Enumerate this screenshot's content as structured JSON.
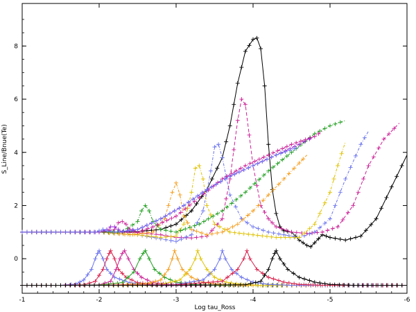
{
  "chart_data": {
    "type": "line",
    "title": "",
    "xlabel": "Log tau_Ross",
    "ylabel": "S_Line/Bnue(Te)",
    "xlim": [
      -1,
      -6
    ],
    "ylim": [
      -1.3,
      9.6
    ],
    "xticks": [
      -1,
      -2,
      -3,
      -4,
      -5,
      -6
    ],
    "xtick_labels": [
      "-1",
      "-2",
      "-3",
      "-4",
      "-5",
      "-6"
    ],
    "yticks": [
      0,
      2,
      4,
      6,
      8
    ],
    "ytick_labels": [
      "0",
      "2",
      "4",
      "6",
      "8"
    ],
    "grid": false,
    "legend": "none",
    "colors": {
      "black": "#000000",
      "magenta": "#cc1f96",
      "red": "#d81e4a",
      "blue": "#6a73ee",
      "yellow": "#e0c200",
      "orange": "#f59c1a",
      "green": "#1e9e1e",
      "purple": "#9b2ad8"
    },
    "series": [
      {
        "group": "upper",
        "color": "black",
        "dash": "solid",
        "x": [
          -1,
          -1.5,
          -2,
          -2.5,
          -2.8,
          -3,
          -3.2,
          -3.4,
          -3.6,
          -3.7,
          -3.8,
          -3.9,
          -4.0,
          -4.05,
          -4.1,
          -4.15,
          -4.2,
          -4.25,
          -4.3,
          -4.35,
          -4.4,
          -4.5,
          -4.6,
          -4.7,
          -4.75,
          -4.8,
          -4.9,
          -5.0,
          -5.2,
          -5.4,
          -5.6,
          -5.8,
          -6.0
        ],
        "y": [
          1.0,
          1.0,
          1.0,
          1.02,
          1.1,
          1.3,
          1.8,
          2.6,
          3.8,
          5.0,
          6.6,
          7.8,
          8.25,
          8.3,
          7.9,
          6.5,
          4.3,
          2.6,
          1.7,
          1.2,
          1.05,
          1.0,
          0.7,
          0.5,
          0.45,
          0.6,
          0.9,
          0.8,
          0.7,
          0.85,
          1.5,
          2.7,
          3.9
        ]
      },
      {
        "group": "upper",
        "color": "magenta",
        "dash": "dash",
        "x": [
          -1,
          -1.5,
          -2,
          -2.5,
          -2.8,
          -3,
          -3.2,
          -3.4,
          -3.6,
          -3.7,
          -3.8,
          -3.85,
          -3.9,
          -4.0,
          -4.1,
          -4.2,
          -4.3,
          -4.5,
          -4.7,
          -4.9,
          -5.1,
          -5.3,
          -5.5,
          -5.7,
          -5.9
        ],
        "y": [
          1.0,
          1.0,
          1.0,
          0.98,
          0.9,
          0.8,
          0.78,
          0.85,
          1.5,
          3.0,
          5.2,
          6.0,
          5.8,
          3.5,
          2.0,
          1.5,
          1.2,
          1.0,
          0.95,
          1.0,
          1.2,
          2.0,
          3.5,
          4.5,
          5.1
        ]
      },
      {
        "group": "upper",
        "color": "blue",
        "dash": "dashdot",
        "x": [
          -1,
          -1.5,
          -2,
          -2.5,
          -2.8,
          -3,
          -3.2,
          -3.35,
          -3.45,
          -3.5,
          -3.55,
          -3.6,
          -3.7,
          -3.85,
          -4.0,
          -4.2,
          -4.4,
          -4.6,
          -4.8,
          -5.0,
          -5.2,
          -5.4,
          -5.5
        ],
        "y": [
          1.0,
          1.0,
          1.0,
          0.9,
          0.75,
          0.65,
          0.9,
          1.8,
          3.3,
          4.2,
          4.3,
          3.8,
          2.4,
          1.5,
          1.2,
          1.0,
          0.9,
          0.8,
          1.0,
          1.5,
          3.0,
          4.3,
          4.8
        ]
      },
      {
        "group": "upper",
        "color": "yellow",
        "dash": "dashdot",
        "x": [
          -1,
          -1.5,
          -2,
          -2.5,
          -2.8,
          -3,
          -3.1,
          -3.2,
          -3.25,
          -3.3,
          -3.35,
          -3.4,
          -3.5,
          -3.7,
          -4.0,
          -4.3,
          -4.6,
          -4.8,
          -5.0,
          -5.1,
          -5.2
        ],
        "y": [
          1.0,
          1.0,
          1.0,
          0.9,
          0.8,
          0.85,
          1.3,
          2.5,
          3.4,
          3.5,
          3.0,
          2.0,
          1.3,
          1.0,
          0.9,
          0.8,
          0.8,
          1.3,
          2.5,
          3.5,
          4.4
        ]
      },
      {
        "group": "upper",
        "color": "orange",
        "dash": "dashdot",
        "x": [
          -1,
          -1.5,
          -2,
          -2.4,
          -2.7,
          -2.85,
          -2.95,
          -3.0,
          -3.05,
          -3.1,
          -3.2,
          -3.4,
          -3.6,
          -3.8,
          -4.0,
          -4.2,
          -4.4,
          -4.6,
          -4.7
        ],
        "y": [
          1.0,
          1.0,
          1.0,
          0.9,
          1.0,
          1.5,
          2.5,
          2.85,
          2.4,
          1.6,
          1.1,
          0.9,
          1.0,
          1.3,
          1.8,
          2.4,
          3.0,
          3.6,
          3.9
        ]
      },
      {
        "group": "upper",
        "color": "green",
        "dash": "dashdot",
        "x": [
          -1,
          -1.5,
          -2,
          -2.3,
          -2.5,
          -2.55,
          -2.6,
          -2.65,
          -2.7,
          -2.8,
          -3.0,
          -3.3,
          -3.6,
          -3.9,
          -4.2,
          -4.5,
          -4.8,
          -5.0,
          -5.2
        ],
        "y": [
          1.0,
          1.0,
          1.0,
          1.0,
          1.4,
          1.8,
          2.0,
          1.8,
          1.4,
          1.1,
          1.0,
          1.3,
          1.8,
          2.5,
          3.3,
          4.0,
          4.7,
          5.0,
          5.2
        ]
      },
      {
        "group": "upper",
        "color": "magenta",
        "dash": "dashdot",
        "x": [
          -1,
          -1.5,
          -2,
          -2.2,
          -2.25,
          -2.3,
          -2.35,
          -2.4,
          -2.5,
          -2.7,
          -3.0,
          -3.3,
          -3.6,
          -3.9,
          -4.2,
          -4.5,
          -4.8,
          -4.9
        ],
        "y": [
          1.0,
          1.0,
          1.0,
          1.1,
          1.35,
          1.4,
          1.3,
          1.1,
          1.0,
          1.2,
          1.6,
          2.3,
          3.0,
          3.5,
          3.9,
          4.3,
          4.6,
          4.8
        ]
      },
      {
        "group": "upper",
        "color": "purple",
        "dash": "dashdot",
        "x": [
          -1,
          -1.5,
          -2,
          -2.1,
          -2.15,
          -2.2,
          -2.25,
          -2.3,
          -2.5,
          -2.8,
          -3.1,
          -3.4,
          -3.7,
          -4.0,
          -4.3,
          -4.6,
          -4.8
        ],
        "y": [
          1.0,
          1.0,
          1.0,
          1.1,
          1.2,
          1.2,
          1.1,
          1.0,
          1.1,
          1.5,
          2.0,
          2.6,
          3.1,
          3.5,
          3.9,
          4.3,
          4.6
        ]
      },
      {
        "group": "upper",
        "color": "blue",
        "dash": "dashdot",
        "x": [
          -1,
          -1.5,
          -1.95,
          -2.0,
          -2.05,
          -2.1,
          -2.2,
          -2.5,
          -2.8,
          -3.1,
          -3.4,
          -3.7,
          -4.0,
          -4.3,
          -4.6
        ],
        "y": [
          1.0,
          1.0,
          1.0,
          1.05,
          1.1,
          1.05,
          1.0,
          1.1,
          1.5,
          2.0,
          2.6,
          3.1,
          3.5,
          3.9,
          4.2
        ]
      },
      {
        "group": "lower",
        "color": "blue",
        "dash": "solid",
        "x": [
          -1,
          -1.5,
          -1.7,
          -1.8,
          -1.9,
          -1.95,
          -1.98,
          -2.0,
          -2.05,
          -2.1,
          -2.2,
          -2.4,
          -2.6,
          -2.8,
          -3.0,
          -3.5,
          -4.0,
          -5.0,
          -6.0
        ],
        "y": [
          -1.0,
          -1.0,
          -0.95,
          -0.8,
          -0.4,
          0.0,
          0.2,
          0.3,
          0.0,
          -0.4,
          -0.7,
          -0.9,
          -0.95,
          -1.0,
          -1.0,
          -1.0,
          -1.0,
          -1.0,
          -1.0
        ]
      },
      {
        "group": "lower",
        "color": "red",
        "dash": "solid",
        "x": [
          -1,
          -1.5,
          -1.8,
          -1.95,
          -2.05,
          -2.1,
          -2.13,
          -2.15,
          -2.2,
          -2.25,
          -2.35,
          -2.5,
          -2.7,
          -3.0,
          -4.0,
          -5.0,
          -6.0
        ],
        "y": [
          -1.0,
          -1.0,
          -0.98,
          -0.85,
          -0.4,
          0.0,
          0.2,
          0.3,
          0.0,
          -0.4,
          -0.7,
          -0.9,
          -0.97,
          -1.0,
          -1.0,
          -1.0,
          -1.0
        ]
      },
      {
        "group": "lower",
        "color": "magenta",
        "dash": "solid",
        "x": [
          -1,
          -1.5,
          -2.0,
          -2.15,
          -2.22,
          -2.27,
          -2.3,
          -2.33,
          -2.38,
          -2.45,
          -2.55,
          -2.7,
          -2.9,
          -3.2,
          -4.0,
          -5.0,
          -6.0
        ],
        "y": [
          -1.0,
          -1.0,
          -0.98,
          -0.85,
          -0.4,
          0.0,
          0.2,
          0.3,
          0.0,
          -0.4,
          -0.7,
          -0.9,
          -0.97,
          -1.0,
          -1.0,
          -1.0,
          -1.0
        ]
      },
      {
        "group": "lower",
        "color": "green",
        "dash": "solid",
        "x": [
          -1,
          -1.5,
          -2.0,
          -2.3,
          -2.45,
          -2.53,
          -2.57,
          -2.6,
          -2.65,
          -2.72,
          -2.85,
          -3.0,
          -3.2,
          -3.5,
          -4.0,
          -5.0,
          -6.0
        ],
        "y": [
          -1.0,
          -1.0,
          -0.99,
          -0.9,
          -0.5,
          0.0,
          0.2,
          0.3,
          0.0,
          -0.4,
          -0.7,
          -0.88,
          -0.97,
          -1.0,
          -1.0,
          -1.0,
          -1.0
        ]
      },
      {
        "group": "lower",
        "color": "orange",
        "dash": "solid",
        "x": [
          -1,
          -1.5,
          -2.0,
          -2.6,
          -2.8,
          -2.9,
          -2.95,
          -2.98,
          -3.02,
          -3.08,
          -3.2,
          -3.35,
          -3.55,
          -3.8,
          -4.2,
          -5.0,
          -6.0
        ],
        "y": [
          -1.0,
          -1.0,
          -1.0,
          -0.95,
          -0.8,
          -0.4,
          0.0,
          0.3,
          0.0,
          -0.4,
          -0.7,
          -0.88,
          -0.97,
          -1.0,
          -1.0,
          -1.0,
          -1.0
        ]
      },
      {
        "group": "lower",
        "color": "yellow",
        "dash": "solid",
        "x": [
          -1,
          -1.5,
          -2.0,
          -2.8,
          -3.05,
          -3.18,
          -3.25,
          -3.28,
          -3.32,
          -3.4,
          -3.5,
          -3.65,
          -3.85,
          -4.1,
          -4.5,
          -5.0,
          -6.0
        ],
        "y": [
          -1.0,
          -1.0,
          -1.0,
          -0.97,
          -0.8,
          -0.4,
          0.0,
          0.3,
          0.0,
          -0.4,
          -0.7,
          -0.88,
          -0.97,
          -1.0,
          -1.0,
          -1.0,
          -1.0
        ]
      },
      {
        "group": "lower",
        "color": "blue",
        "dash": "solid",
        "x": [
          -1,
          -1.5,
          -2.0,
          -3.0,
          -3.35,
          -3.5,
          -3.57,
          -3.6,
          -3.64,
          -3.72,
          -3.85,
          -4.0,
          -4.2,
          -4.5,
          -5.0,
          -6.0
        ],
        "y": [
          -1.0,
          -1.0,
          -1.0,
          -0.97,
          -0.8,
          -0.4,
          0.0,
          0.3,
          0.0,
          -0.4,
          -0.7,
          -0.88,
          -0.97,
          -1.0,
          -1.0,
          -1.0
        ]
      },
      {
        "group": "lower",
        "color": "red",
        "dash": "solid",
        "x": [
          -1,
          -1.5,
          -2.0,
          -3.0,
          -3.6,
          -3.8,
          -3.88,
          -3.92,
          -3.96,
          -4.05,
          -4.2,
          -4.4,
          -4.6,
          -4.9,
          -5.3,
          -6.0
        ],
        "y": [
          -1.0,
          -1.0,
          -1.0,
          -0.98,
          -0.85,
          -0.4,
          0.0,
          0.3,
          0.0,
          -0.4,
          -0.7,
          -0.88,
          -0.97,
          -1.0,
          -1.0,
          -1.0
        ]
      },
      {
        "group": "lower",
        "color": "black",
        "dash": "solid",
        "x": [
          -1,
          -1.5,
          -2.0,
          -3.0,
          -3.9,
          -4.1,
          -4.2,
          -4.25,
          -4.28,
          -4.3,
          -4.35,
          -4.45,
          -4.6,
          -4.8,
          -5.0,
          -5.3,
          -5.6,
          -6.0
        ],
        "y": [
          -1.0,
          -1.0,
          -1.0,
          -1.0,
          -0.98,
          -0.85,
          -0.4,
          0.0,
          0.2,
          0.3,
          0.0,
          -0.4,
          -0.7,
          -0.88,
          -0.97,
          -1.0,
          -1.0,
          -1.0
        ]
      }
    ]
  }
}
